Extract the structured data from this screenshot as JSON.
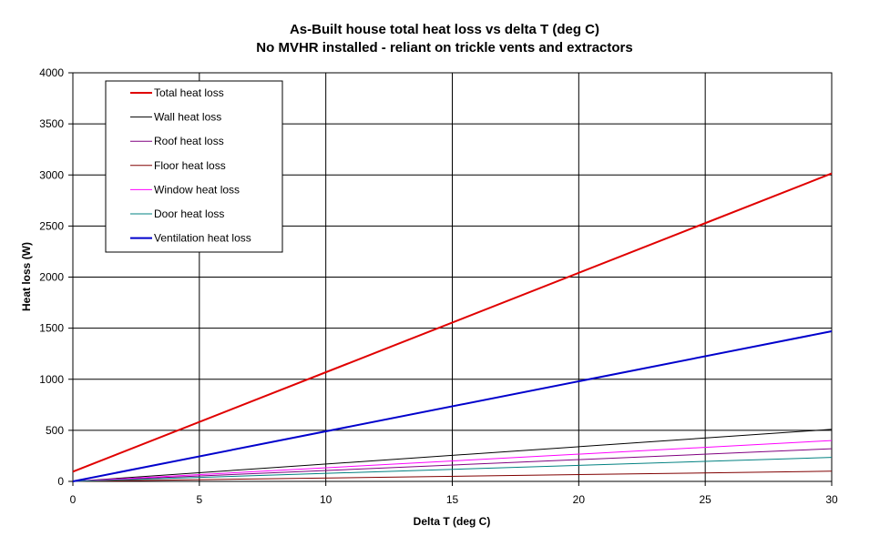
{
  "chart_data": {
    "type": "line",
    "title": "As-Built house total heat loss vs delta T (deg C)",
    "subtitle": "No MVHR installed - reliant on trickle vents and extractors",
    "xlabel": "Delta T (deg C)",
    "ylabel": "Heat loss (W)",
    "xlim": [
      0,
      30
    ],
    "ylim": [
      0,
      4000
    ],
    "x_ticks": [
      0,
      5,
      10,
      15,
      20,
      25,
      30
    ],
    "y_ticks": [
      0,
      500,
      1000,
      1500,
      2000,
      2500,
      3000,
      3500,
      4000
    ],
    "grid": true,
    "legend_position": "top-left",
    "x": [
      0,
      30
    ],
    "series": [
      {
        "name": "Total heat loss",
        "color": "#e00000",
        "values": [
          95,
          3015
        ]
      },
      {
        "name": "Wall heat loss",
        "color": "#000000",
        "values": [
          0,
          510
        ]
      },
      {
        "name": "Roof heat loss",
        "color": "#800080",
        "values": [
          0,
          320
        ]
      },
      {
        "name": "Floor heat loss",
        "color": "#800000",
        "values": [
          0,
          100
        ]
      },
      {
        "name": "Window heat loss",
        "color": "#ff00ff",
        "values": [
          0,
          400
        ]
      },
      {
        "name": "Door heat loss",
        "color": "#008080",
        "values": [
          0,
          235
        ]
      },
      {
        "name": "Ventilation heat loss",
        "color": "#0000cc",
        "values": [
          0,
          1470
        ]
      }
    ]
  }
}
